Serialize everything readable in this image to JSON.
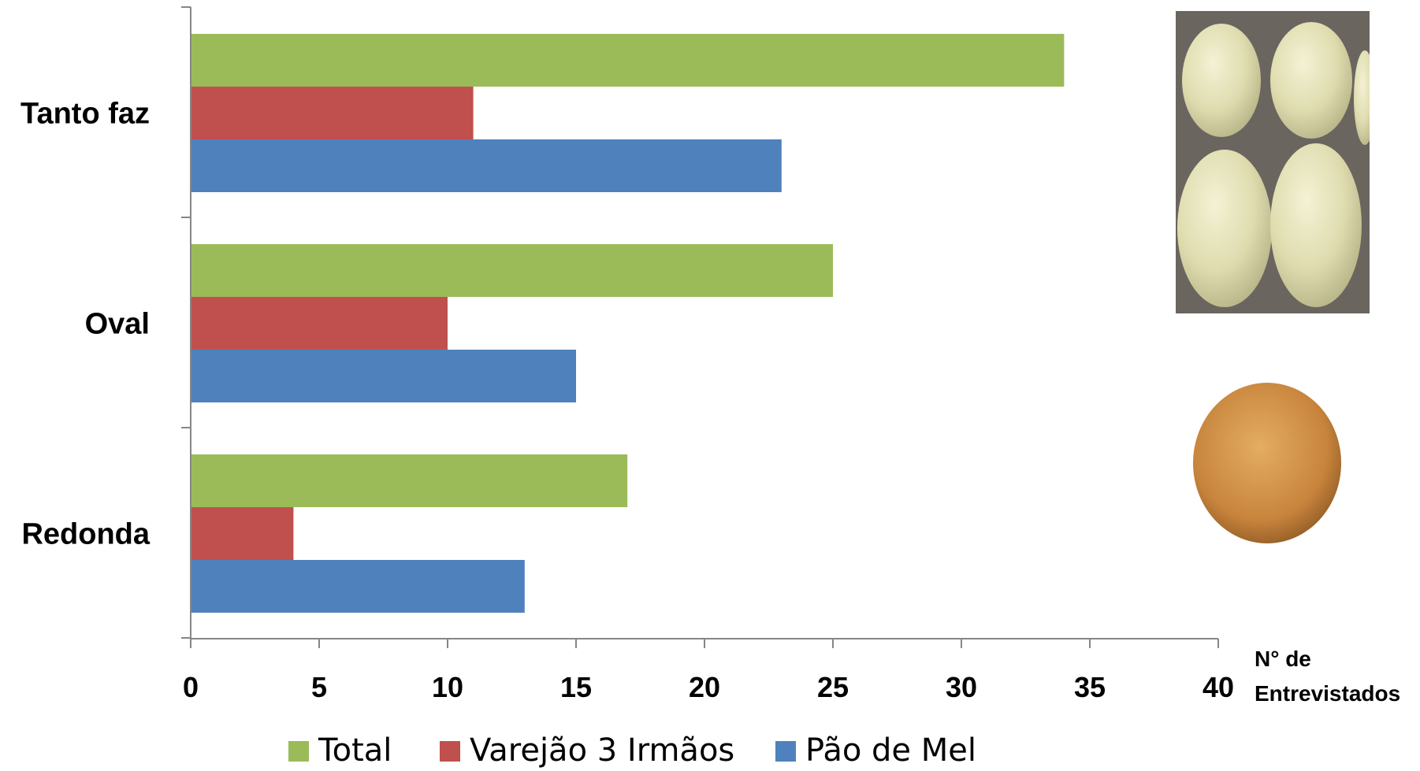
{
  "chart_data": {
    "type": "bar",
    "orientation": "horizontal",
    "categories": [
      "Tanto faz",
      "Oval",
      "Redonda"
    ],
    "series": [
      {
        "name": "Total",
        "color": "#9BBB59",
        "values": [
          34,
          25,
          17
        ]
      },
      {
        "name": "Varejão 3 Irmãos",
        "color": "#C0504D",
        "values": [
          11,
          10,
          4
        ]
      },
      {
        "name": "Pão de Mel",
        "color": "#4F81BD",
        "values": [
          23,
          15,
          13
        ]
      }
    ],
    "xticks": [
      0,
      5,
      10,
      15,
      20,
      25,
      30,
      35,
      40
    ],
    "xlim": [
      0,
      40
    ],
    "xlabel_line1": "N° de",
    "xlabel_line2": "Entrevistados",
    "legend_position": "bottom",
    "grid": false
  },
  "images": [
    {
      "name": "oval-potatoes-photo",
      "subject": "oval potatoes"
    },
    {
      "name": "round-potato-photo",
      "subject": "round potato"
    }
  ]
}
